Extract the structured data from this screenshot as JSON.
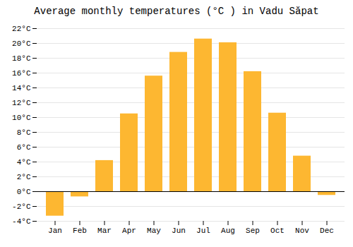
{
  "chart_data": {
    "type": "bar",
    "title": "Average monthly temperatures (°C ) in Vadu Săpat",
    "categories": [
      "Jan",
      "Feb",
      "Mar",
      "Apr",
      "May",
      "Jun",
      "Jul",
      "Aug",
      "Sep",
      "Oct",
      "Nov",
      "Dec"
    ],
    "values": [
      -3.3,
      -0.7,
      4.2,
      10.5,
      15.6,
      18.8,
      20.6,
      20.1,
      16.2,
      10.6,
      4.8,
      -0.5
    ],
    "color": "#FDB731",
    "ylim": [
      -4,
      22
    ],
    "yticks": [
      {
        "value": -4,
        "label": "-4°C"
      },
      {
        "value": -2,
        "label": "-2°C"
      },
      {
        "value": 0,
        "label": "0°C"
      },
      {
        "value": 2,
        "label": "2°C"
      },
      {
        "value": 4,
        "label": "4°C"
      },
      {
        "value": 6,
        "label": "6°C"
      },
      {
        "value": 8,
        "label": "8°C"
      },
      {
        "value": 10,
        "label": "10°C"
      },
      {
        "value": 12,
        "label": "12°C"
      },
      {
        "value": 14,
        "label": "14°C"
      },
      {
        "value": 16,
        "label": "16°C"
      },
      {
        "value": 18,
        "label": "18°C"
      },
      {
        "value": 20,
        "label": "20°C"
      },
      {
        "value": 22,
        "label": "22°C"
      }
    ],
    "grid": true
  }
}
